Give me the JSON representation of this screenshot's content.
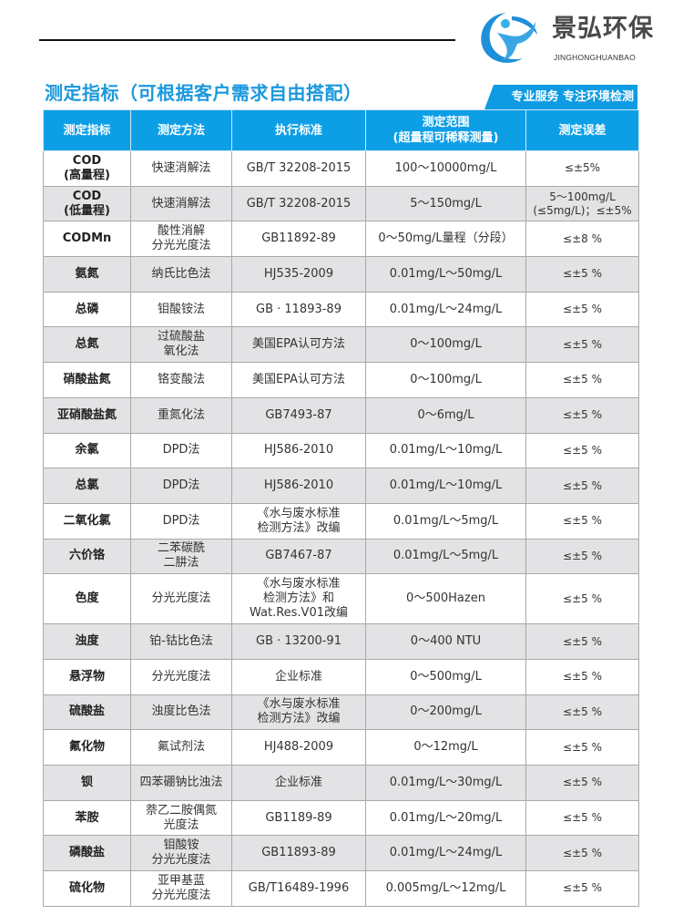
{
  "logo": {
    "name_cn": "景弘环保",
    "name_en": "JINGHONGHUANBAO",
    "brand_color": "#1a9ae0"
  },
  "title": "测定指标（可根据客户需求自由搭配）",
  "badge": "专业服务 专注环境检测",
  "table": {
    "headers": [
      "测定指标",
      "测定方法",
      "执行标准",
      "测定范围\n(超量程可稀释测量)",
      "测定误差"
    ],
    "rows": [
      [
        "COD\n(高量程)",
        "快速消解法",
        "GB/T 32208-2015",
        "100～10000mg/L",
        "≤±5%"
      ],
      [
        "COD\n(低量程)",
        "快速消解法",
        "GB/T 32208-2015",
        "5～150mg/L",
        "5～100mg/L\n(≤5mg/L)；≤±5%"
      ],
      [
        "CODMn",
        "酸性消解\n分光光度法",
        "GB11892-89",
        "0～50mg/L量程（分段）",
        "≤±8 %"
      ],
      [
        "氨氮",
        "纳氏比色法",
        "HJ535-2009",
        "0.01mg/L～50mg/L",
        "≤±5 %"
      ],
      [
        "总磷",
        "钼酸铵法",
        "GB · 11893-89",
        "0.01mg/L～24mg/L",
        "≤±5 %"
      ],
      [
        "总氮",
        "过硫酸盐\n氧化法",
        "美国EPA认可方法",
        "0～100mg/L",
        "≤±5 %"
      ],
      [
        "硝酸盐氮",
        "铬变酸法",
        "美国EPA认可方法",
        "0～100mg/L",
        "≤±5 %"
      ],
      [
        "亚硝酸盐氮",
        "重氮化法",
        "GB7493-87",
        "0～6mg/L",
        "≤±5 %"
      ],
      [
        "余氯",
        "DPD法",
        "HJ586-2010",
        "0.01mg/L～10mg/L",
        "≤±5 %"
      ],
      [
        "总氯",
        "DPD法",
        "HJ586-2010",
        "0.01mg/L～10mg/L",
        "≤±5 %"
      ],
      [
        "二氧化氯",
        "DPD法",
        "《水与废水标准\n检测方法》改编",
        "0.01mg/L～5mg/L",
        "≤±5 %"
      ],
      [
        "六价铬",
        "二苯碳酰\n二肼法",
        "GB7467-87",
        "0.01mg/L～5mg/L",
        "≤±5 %"
      ],
      [
        "色度",
        "分光光度法",
        "《水与废水标准\n检测方法》和\nWat.Res.V01改编",
        "0～500Hazen",
        "≤±5 %"
      ],
      [
        "浊度",
        "铂-钴比色法",
        "GB · 13200-91",
        "0～400 NTU",
        "≤±5 %"
      ],
      [
        "悬浮物",
        "分光光度法",
        "企业标准",
        "0～500mg/L",
        "≤±5 %"
      ],
      [
        "硫酸盐",
        "浊度比色法",
        "《水与废水标准\n检测方法》改编",
        "0～200mg/L",
        "≤±5 %"
      ],
      [
        "氟化物",
        "氟试剂法",
        "HJ488-2009",
        "0～12mg/L",
        "≤±5 %"
      ],
      [
        "钡",
        "四苯硼钠比浊法",
        "企业标准",
        "0.01mg/L～30mg/L",
        "≤±5 %"
      ],
      [
        "苯胺",
        "萘乙二胺偶氮\n光度法",
        "GB1189-89",
        "0.01mg/L～20mg/L",
        "≤±5 %"
      ],
      [
        "磷酸盐",
        "钼酸铵\n分光光度法",
        "GB11893-89",
        "0.01mg/L～24mg/L",
        "≤±5 %"
      ],
      [
        "硫化物",
        "亚甲基蓝\n分光光度法",
        "GB/T16489-1996",
        "0.005mg/L～12mg/L",
        "≤±5 %"
      ]
    ]
  }
}
